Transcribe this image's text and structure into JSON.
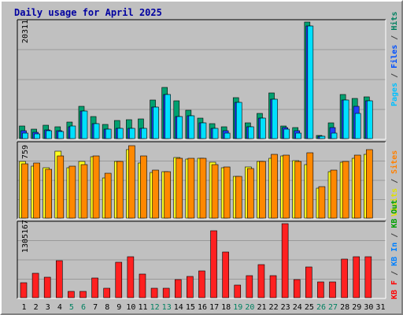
{
  "chart_data": [
    {
      "type": "bar",
      "panel": "top",
      "title": "Daily usage for April 2025",
      "ylabel_max": "20311",
      "ymax": 20311,
      "legend_labels": [
        {
          "text": "Pages",
          "color": "#00c0ff"
        },
        {
          "text": " / ",
          "color": "#404040"
        },
        {
          "text": "Files",
          "color": "#0050ff"
        },
        {
          "text": " / ",
          "color": "#404040"
        },
        {
          "text": "Hits",
          "color": "#008060"
        }
      ],
      "series": [
        {
          "name": "Hits",
          "color": "#00a070",
          "values": [
            2160,
            1660,
            2330,
            2050,
            2900,
            5600,
            3880,
            2530,
            3200,
            3330,
            3460,
            6680,
            8950,
            6650,
            4880,
            3530,
            2560,
            2110,
            7200,
            2760,
            4380,
            7970,
            2190,
            1960,
            20311,
            540,
            2750,
            7630,
            6950,
            7280,
            0
          ]
        },
        {
          "name": "Files",
          "color": "#2040ff",
          "values": [
            1360,
            1060,
            1560,
            1330,
            2100,
            4800,
            2580,
            1600,
            1800,
            1760,
            1830,
            5550,
            7700,
            3780,
            3930,
            2730,
            1730,
            1410,
            6320,
            2050,
            3630,
            6830,
            1960,
            1390,
            19680,
            400,
            1950,
            6730,
            5560,
            6580,
            0
          ]
        },
        {
          "name": "Pages",
          "color": "#00e0ff",
          "values": [
            1000,
            850,
            1330,
            1180,
            2130,
            4800,
            2580,
            1600,
            1760,
            1760,
            1830,
            5550,
            7700,
            3780,
            3930,
            2730,
            1730,
            1000,
            6320,
            2050,
            3630,
            6830,
            1610,
            1000,
            19680,
            400,
            1000,
            6730,
            4450,
            6580,
            0
          ]
        }
      ],
      "categories": [
        "1",
        "2",
        "3",
        "4",
        "5",
        "6",
        "7",
        "8",
        "9",
        "10",
        "11",
        "12",
        "13",
        "14",
        "15",
        "16",
        "17",
        "18",
        "19",
        "20",
        "21",
        "22",
        "23",
        "24",
        "25",
        "26",
        "27",
        "28",
        "29",
        "30",
        "31"
      ],
      "weekend_days": [
        "5",
        "6",
        "12",
        "13",
        "19",
        "20",
        "26",
        "27"
      ]
    },
    {
      "type": "bar",
      "panel": "middle",
      "ylabel_max": "759",
      "ymax": 759,
      "legend_labels": [
        {
          "text": "Visits",
          "color": "#e0e000"
        },
        {
          "text": " / ",
          "color": "#404040"
        },
        {
          "text": "Sites",
          "color": "#ff8000"
        }
      ],
      "series": [
        {
          "name": "Visits",
          "color": "#ffff20",
          "values": [
            584,
            530,
            515,
            689,
            516,
            582,
            628,
            412,
            584,
            699,
            564,
            467,
            476,
            624,
            604,
            612,
            570,
            519,
            424,
            526,
            584,
            611,
            641,
            588,
            550,
            304,
            476,
            577,
            612,
            655,
            0
          ]
        },
        {
          "name": "Sites",
          "color": "#ff8800",
          "values": [
            554,
            563,
            499,
            638,
            529,
            550,
            636,
            461,
            584,
            740,
            641,
            490,
            476,
            613,
            614,
            612,
            553,
            526,
            424,
            509,
            584,
            651,
            649,
            584,
            670,
            322,
            492,
            585,
            645,
            701,
            0
          ]
        }
      ]
    },
    {
      "type": "bar",
      "panel": "bottom",
      "ylabel_max": "1305167",
      "ymax": 1305167,
      "legend_labels": [
        {
          "text": "KB F",
          "color": "#ff0000"
        },
        {
          "text": " / ",
          "color": "#404040"
        },
        {
          "text": "KB In",
          "color": "#0080ff"
        },
        {
          "text": " / ",
          "color": "#404040"
        },
        {
          "text": "KB Out",
          "color": "#00a000"
        }
      ],
      "series": [
        {
          "name": "KB F",
          "color": "#ff2020",
          "values": [
            267000,
            425000,
            366000,
            648000,
            112000,
            112000,
            344000,
            162000,
            630000,
            719000,
            414000,
            162000,
            162000,
            325000,
            375000,
            474000,
            1184000,
            801000,
            226000,
            385000,
            582000,
            385000,
            1305167,
            325000,
            543000,
            276000,
            276000,
            680000,
            719000,
            719000,
            0
          ]
        }
      ]
    }
  ]
}
